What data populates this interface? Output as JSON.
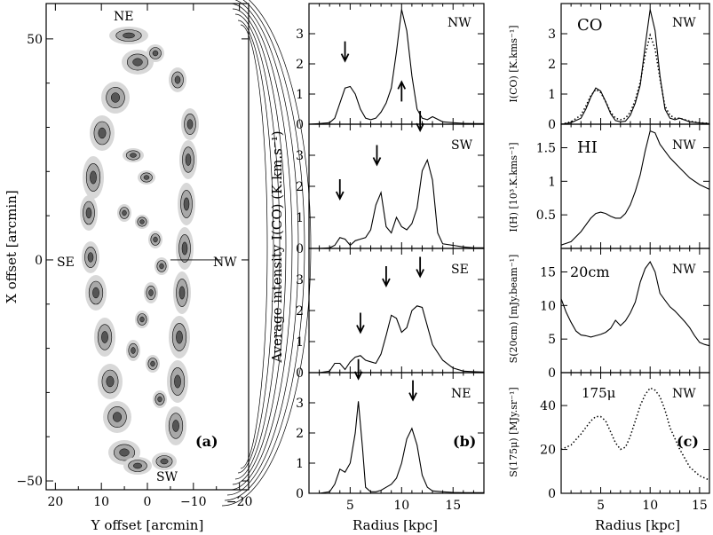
{
  "chart_data": [
    {
      "panel": "a",
      "type": "contour-map",
      "panel_label": "(a)",
      "xlabel": "Y offset [arcmin]",
      "ylabel": "X offset [arcmin]",
      "xlim": [
        22,
        -22
      ],
      "ylim": [
        -52,
        58
      ],
      "xticks": [
        "20",
        "10",
        "0",
        "−10",
        "−20"
      ],
      "xtick_values": [
        20,
        10,
        0,
        -10,
        -20
      ],
      "yticks": [
        "50",
        "0",
        "−50"
      ],
      "ytick_values": [
        50,
        0,
        -50
      ],
      "annotations": {
        "ne": "NE",
        "sw": "SW",
        "se": "SE",
        "nw": "NW"
      }
    },
    {
      "panel": "b",
      "type": "line",
      "panel_label": "(b)",
      "xlabel": "Radius [kpc]",
      "ylabel": "Average intensity I(CO) (K.km.s⁻¹)",
      "xlim": [
        1,
        18
      ],
      "xticks": [
        "5",
        "10",
        "15"
      ],
      "xtick_values": [
        5,
        10,
        15
      ],
      "subplots": [
        {
          "label": "NW",
          "ylim": [
            0,
            4
          ],
          "yticks": [
            0,
            1,
            2,
            3
          ],
          "x": [
            1,
            2,
            3,
            3.5,
            4,
            4.5,
            5,
            5.5,
            6,
            6.5,
            7,
            7.5,
            8,
            8.5,
            9,
            9.5,
            10,
            10.5,
            11,
            11.5,
            12,
            12.5,
            13,
            14,
            15,
            16,
            17,
            18
          ],
          "y": [
            0,
            0.02,
            0.05,
            0.2,
            0.7,
            1.2,
            1.25,
            1.0,
            0.5,
            0.2,
            0.15,
            0.2,
            0.4,
            0.7,
            1.2,
            2.4,
            3.8,
            3.1,
            1.6,
            0.5,
            0.2,
            0.15,
            0.25,
            0.08,
            0.05,
            0.03,
            0.02,
            0.02
          ],
          "arrows": [
            {
              "x": 4.5,
              "y": 2.1,
              "dir": "down"
            },
            {
              "x": 10.0,
              "y": 1.4,
              "dir": "up"
            }
          ]
        },
        {
          "label": "SW",
          "ylim": [
            0,
            4
          ],
          "yticks": [
            0,
            1,
            2,
            3
          ],
          "x": [
            1,
            2,
            3,
            3.5,
            4,
            4.5,
            5,
            5.5,
            6,
            6.5,
            7,
            7.5,
            8,
            8.5,
            9,
            9.5,
            10,
            10.5,
            11,
            11.5,
            12,
            12.5,
            13,
            13.5,
            14,
            15,
            16,
            17,
            18
          ],
          "y": [
            0,
            0,
            0.02,
            0.1,
            0.35,
            0.3,
            0.1,
            0.25,
            0.3,
            0.35,
            0.6,
            1.4,
            1.8,
            0.7,
            0.5,
            1.0,
            0.7,
            0.6,
            0.8,
            1.3,
            2.5,
            2.85,
            2.2,
            0.5,
            0.15,
            0.1,
            0.05,
            0.02,
            0.02
          ],
          "arrows": [
            {
              "x": 4.0,
              "y": 1.6,
              "dir": "down"
            },
            {
              "x": 7.6,
              "y": 2.7,
              "dir": "down"
            },
            {
              "x": 11.8,
              "y": 3.8,
              "dir": "down"
            }
          ]
        },
        {
          "label": "SE",
          "ylim": [
            0,
            4
          ],
          "yticks": [
            0,
            1,
            2,
            3
          ],
          "x": [
            1,
            2,
            3,
            3.5,
            4,
            4.5,
            5,
            5.5,
            6,
            6.5,
            7,
            7.5,
            8,
            8.5,
            9,
            9.5,
            10,
            10.5,
            11,
            11.5,
            12,
            12.5,
            13,
            14,
            15,
            16,
            17,
            18
          ],
          "y": [
            0,
            0,
            0.05,
            0.3,
            0.3,
            0.1,
            0.35,
            0.5,
            0.55,
            0.4,
            0.35,
            0.3,
            0.6,
            1.2,
            1.85,
            1.75,
            1.3,
            1.45,
            2.0,
            2.15,
            2.1,
            1.5,
            0.9,
            0.4,
            0.15,
            0.05,
            0.03,
            0.02
          ],
          "arrows": [
            {
              "x": 6.0,
              "y": 1.3,
              "dir": "down"
            },
            {
              "x": 8.5,
              "y": 2.8,
              "dir": "down"
            },
            {
              "x": 11.8,
              "y": 3.1,
              "dir": "down"
            }
          ]
        },
        {
          "label": "NE",
          "ylim": [
            0,
            4
          ],
          "yticks": [
            0,
            1,
            2,
            3
          ],
          "x": [
            1,
            2,
            3,
            3.5,
            4,
            4.5,
            5,
            5.5,
            5.8,
            6.2,
            6.5,
            7,
            7.5,
            8,
            8.5,
            9,
            9.5,
            10,
            10.5,
            11,
            11.5,
            12,
            12.5,
            13,
            14,
            15,
            16,
            17,
            18
          ],
          "y": [
            0,
            0,
            0.05,
            0.3,
            0.8,
            0.7,
            1.0,
            2.0,
            3.05,
            1.5,
            0.2,
            0.05,
            0.05,
            0.1,
            0.2,
            0.3,
            0.5,
            1.0,
            1.8,
            2.15,
            1.6,
            0.6,
            0.2,
            0.08,
            0.05,
            0.03,
            0.02,
            0.02,
            0.02
          ],
          "arrows": [
            {
              "x": 5.8,
              "y": 3.8,
              "dir": "down"
            },
            {
              "x": 11.1,
              "y": 3.1,
              "dir": "down"
            }
          ]
        }
      ]
    },
    {
      "panel": "c",
      "type": "line",
      "panel_label": "(c)",
      "xlabel": "Radius [kpc]",
      "xlim": [
        1,
        16
      ],
      "xticks": [
        "5",
        "10",
        "15"
      ],
      "xtick_values": [
        5,
        10,
        15
      ],
      "subplots": [
        {
          "title": "CO",
          "label": "NW",
          "ylabel": "I(CO) [K.kms⁻¹]",
          "ylim": [
            0,
            4
          ],
          "yticks": [
            0,
            1,
            2,
            3
          ],
          "series": [
            {
              "style": "solid",
              "x": [
                1,
                2,
                3,
                3.5,
                4,
                4.5,
                5,
                5.5,
                6,
                6.5,
                7,
                7.5,
                8,
                8.5,
                9,
                9.5,
                10,
                10.5,
                11,
                11.5,
                12,
                12.5,
                13,
                14,
                15,
                16
              ],
              "y": [
                0,
                0.05,
                0.2,
                0.5,
                0.9,
                1.2,
                1.1,
                0.75,
                0.35,
                0.12,
                0.08,
                0.1,
                0.3,
                0.7,
                1.3,
                2.6,
                3.8,
                3.1,
                1.6,
                0.5,
                0.2,
                0.15,
                0.2,
                0.08,
                0.04,
                0.02
              ]
            },
            {
              "style": "dotted",
              "x": [
                1,
                2,
                3,
                3.5,
                4,
                4.5,
                5,
                5.5,
                6,
                6.5,
                7,
                7.5,
                8,
                8.5,
                9,
                9.5,
                10,
                10.5,
                11,
                11.5,
                12,
                12.5,
                13,
                14,
                15,
                16
              ],
              "y": [
                0,
                0.08,
                0.3,
                0.6,
                0.95,
                1.15,
                1.05,
                0.75,
                0.4,
                0.2,
                0.15,
                0.2,
                0.4,
                0.8,
                1.4,
                2.3,
                2.95,
                2.5,
                1.5,
                0.6,
                0.3,
                0.2,
                0.2,
                0.1,
                0.05,
                0.03
              ]
            }
          ]
        },
        {
          "title": "HI",
          "label": "NW",
          "ylabel": "I(H) [10³.K.kms⁻¹]",
          "ylim": [
            0,
            1.85
          ],
          "yticks": [
            0.5,
            1,
            1.5
          ],
          "series": [
            {
              "style": "solid",
              "x": [
                1,
                2,
                3,
                4,
                4.5,
                5,
                5.5,
                6,
                6.5,
                7,
                7.5,
                8,
                8.5,
                9,
                9.5,
                10,
                10.5,
                11,
                12,
                13,
                14,
                15,
                16
              ],
              "y": [
                0.05,
                0.1,
                0.25,
                0.45,
                0.52,
                0.54,
                0.52,
                0.48,
                0.45,
                0.45,
                0.52,
                0.65,
                0.85,
                1.1,
                1.45,
                1.75,
                1.72,
                1.55,
                1.35,
                1.2,
                1.05,
                0.95,
                0.88
              ]
            }
          ]
        },
        {
          "title": "20cm",
          "label": "NW",
          "ylabel": "S(20cm) [mJy.beam⁻¹]",
          "ylim": [
            0,
            18.5
          ],
          "yticks": [
            0,
            5,
            10,
            15
          ],
          "series": [
            {
              "style": "solid",
              "x": [
                1,
                1.5,
                2,
                2.5,
                3,
                3.5,
                4,
                4.5,
                5,
                5.5,
                6,
                6.5,
                7,
                7.5,
                8,
                8.5,
                9,
                9.5,
                10,
                10.5,
                11,
                11.5,
                12,
                12.5,
                13,
                13.5,
                14,
                14.5,
                15,
                15.5,
                16
              ],
              "y": [
                11,
                9,
                7.5,
                6.2,
                5.6,
                5.5,
                5.3,
                5.5,
                5.7,
                6.0,
                6.6,
                7.8,
                7.0,
                7.7,
                8.9,
                10.5,
                13.5,
                15.5,
                16.5,
                15.0,
                11.8,
                10.8,
                9.8,
                9.2,
                8.4,
                7.6,
                6.7,
                5.5,
                4.5,
                4.2,
                4.0
              ]
            }
          ]
        },
        {
          "title": "175μ",
          "label": "NW",
          "ylabel": "S(175μ) [MJy.sr⁻¹]",
          "ylim": [
            0,
            55
          ],
          "yticks": [
            0,
            20,
            40
          ],
          "series": [
            {
              "style": "dotted",
              "x": [
                1,
                2,
                3,
                4,
                4.5,
                5,
                5.5,
                6,
                6.5,
                7,
                7.5,
                8,
                8.5,
                9,
                9.5,
                10,
                10.5,
                11,
                11.5,
                12,
                13,
                14,
                15,
                16
              ],
              "y": [
                20,
                22,
                27,
                33,
                35,
                35,
                33,
                28,
                23,
                20,
                21,
                26,
                33,
                40,
                45,
                48,
                47,
                44,
                38,
                30,
                20,
                12,
                8,
                6
              ]
            }
          ]
        }
      ]
    }
  ]
}
